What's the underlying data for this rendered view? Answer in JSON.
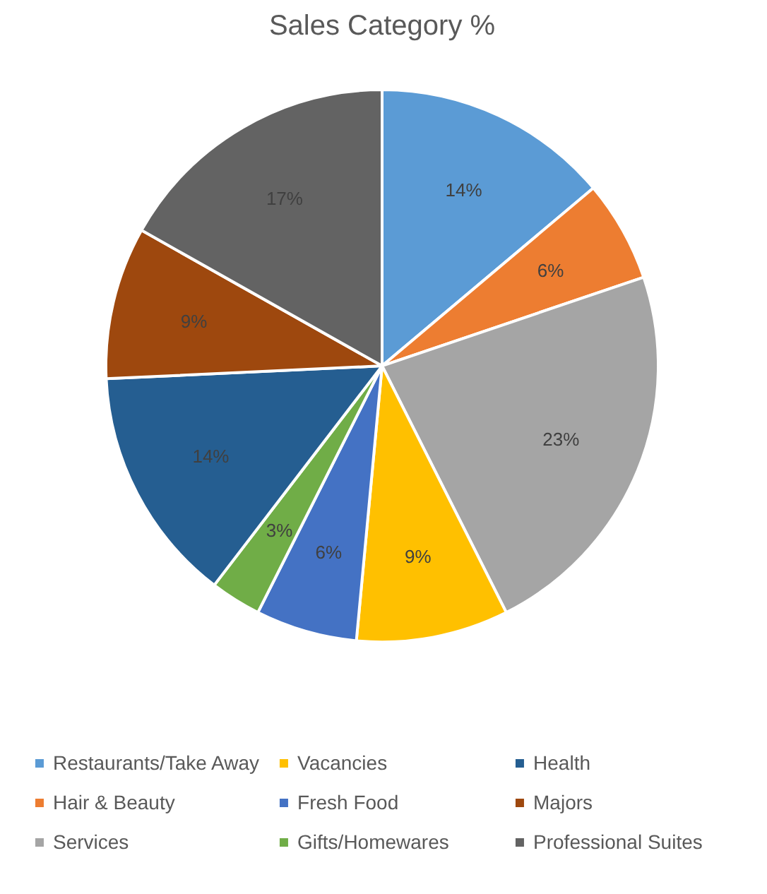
{
  "chart_data": {
    "type": "pie",
    "title": "Sales Category %",
    "categories": [
      "Restaurants/Take Away",
      "Hair & Beauty",
      "Services",
      "Vacancies",
      "Fresh Food",
      "Gifts/Homewares",
      "Health",
      "Majors",
      "Professional Suites"
    ],
    "values": [
      14,
      6,
      23,
      9,
      6,
      3,
      14,
      9,
      17
    ],
    "colors": [
      "#5b9bd5",
      "#ed7d31",
      "#a5a5a5",
      "#ffc000",
      "#4472c4",
      "#70ad47",
      "#255e91",
      "#9e480e",
      "#636363"
    ],
    "value_labels": [
      "14%",
      "6%",
      "23%",
      "9%",
      "6%",
      "3%",
      "14%",
      "9%",
      "17%"
    ],
    "legend": "bottom"
  }
}
